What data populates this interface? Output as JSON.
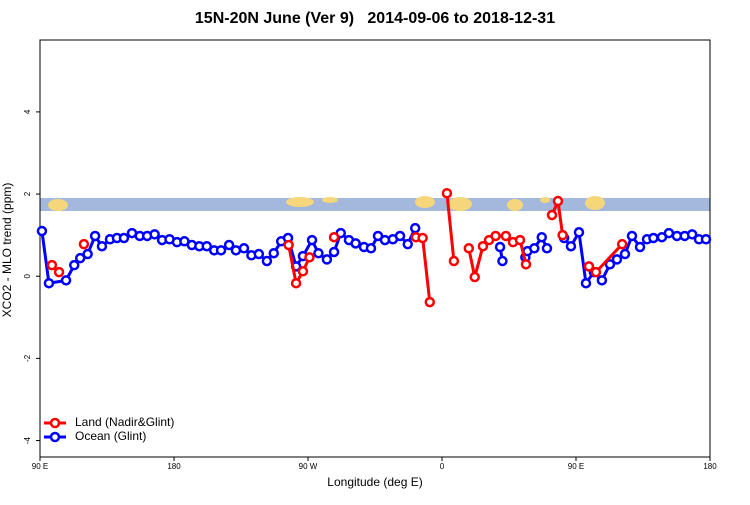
{
  "chart_data": {
    "type": "line",
    "title": "15N-20N June (Ver 9)   2014-09-06 to 2018-12-31",
    "xlabel": "Longitude (deg E)",
    "ylabel": "XCO2 - MLO trend (ppm)",
    "xlim": [
      90,
      540
    ],
    "ylim": [
      -4.4,
      5.75
    ],
    "xticks": [
      {
        "value": 90,
        "label": "90 E"
      },
      {
        "value": 180,
        "label": "180"
      },
      {
        "value": 270,
        "label": "90 W"
      },
      {
        "value": 360,
        "label": "0"
      },
      {
        "value": 450,
        "label": "90 E"
      },
      {
        "value": 540,
        "label": "180"
      }
    ],
    "yticks": [
      -4,
      -2,
      0,
      2,
      4
    ],
    "legend": "bottom-left",
    "series": [
      {
        "name": "Land (Nadir&Glint)",
        "color": "#ff0000",
        "x": [
          98,
          102.8,
          null,
          119.5,
          null,
          257,
          262,
          266.6,
          271,
          null,
          287.5,
          null,
          342.5,
          347,
          351.8,
          null,
          363.3,
          368,
          null,
          378,
          382,
          387.5,
          391.6,
          396,
          402.9,
          407.7,
          412.4,
          416.4,
          null,
          433.9,
          437.9,
          441,
          null,
          458.7,
          463.4,
          481
        ],
        "values": [
          0.27,
          0.1,
          null,
          0.78,
          null,
          0.76,
          -0.17,
          0.12,
          0.46,
          null,
          0.95,
          null,
          0.95,
          0.93,
          -0.63,
          null,
          2.02,
          0.37,
          null,
          0.68,
          -0.02,
          0.73,
          0.88,
          0.98,
          0.98,
          0.83,
          0.88,
          0.29,
          null,
          1.49,
          1.83,
          1.0,
          null,
          0.24,
          0.1,
          0.78
        ]
      },
      {
        "name": "Ocean (Glint)",
        "color": "#0000ff",
        "x": [
          91.3,
          96,
          107.5,
          113,
          117,
          122,
          127,
          131.6,
          137,
          141.7,
          146.4,
          151.8,
          157,
          162,
          167,
          172,
          177,
          182,
          187,
          192,
          197,
          202,
          207,
          211.6,
          217,
          221.6,
          227,
          232,
          237,
          242.4,
          247,
          252,
          256.6,
          262,
          266.6,
          272.7,
          277,
          282.7,
          287.5,
          292,
          297.5,
          302,
          307.6,
          312.3,
          317,
          321.7,
          327,
          331.8,
          337,
          342,
          null,
          399,
          400.6,
          null,
          416,
          417.4,
          422,
          427,
          430.5,
          null,
          442,
          446.6,
          452,
          456.7,
          462,
          467.4,
          472.8,
          477.5,
          482.9,
          487.6,
          493,
          497.7,
          502,
          507.7,
          512.4,
          517.8,
          523,
          528,
          532.6,
          537.3
        ],
        "values": [
          1.1,
          -0.17,
          -0.1,
          0.27,
          0.44,
          0.54,
          0.98,
          0.73,
          0.9,
          0.93,
          0.93,
          1.05,
          0.98,
          0.98,
          1.02,
          0.88,
          0.9,
          0.83,
          0.85,
          0.76,
          0.73,
          0.73,
          0.63,
          0.63,
          0.76,
          0.63,
          0.68,
          0.51,
          0.54,
          0.37,
          0.56,
          0.85,
          0.93,
          0.24,
          0.49,
          0.88,
          0.56,
          0.41,
          0.59,
          1.05,
          0.88,
          0.8,
          0.71,
          0.68,
          0.98,
          0.88,
          0.9,
          0.98,
          0.78,
          1.17,
          null,
          0.71,
          0.37,
          null,
          0.46,
          0.61,
          0.68,
          0.95,
          0.68,
          null,
          0.93,
          0.73,
          1.07,
          -0.17,
          0.1,
          -0.1,
          0.29,
          0.41,
          0.54,
          0.98,
          0.71,
          0.9,
          0.93,
          0.95,
          1.05,
          0.98,
          0.98,
          1.02,
          0.9,
          0.9
        ]
      }
    ]
  }
}
